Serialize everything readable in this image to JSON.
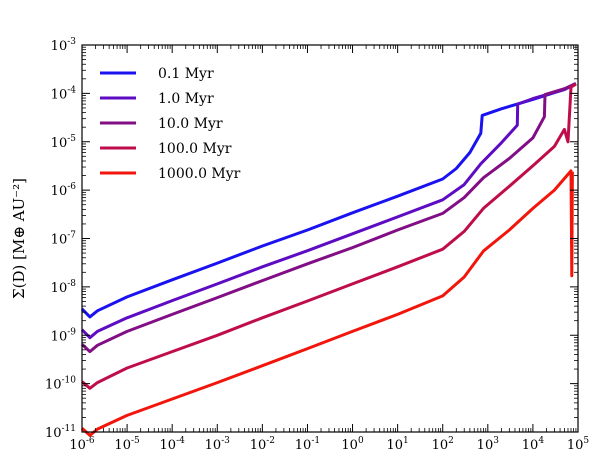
{
  "chart_data": {
    "type": "line",
    "title": "",
    "xlabel": "",
    "ylabel": "Σ(D) [M⊕ AU⁻²]",
    "x_scale": "log",
    "y_scale": "log",
    "xlim": [
      1e-06,
      100000.0
    ],
    "ylim": [
      1e-11,
      0.001
    ],
    "grid": false,
    "legend_position": "top-left",
    "x_tick_labels": [
      "10-6",
      "10-5",
      "10-4",
      "10-3",
      "10-2",
      "10-1",
      "100",
      "101",
      "102",
      "103",
      "104",
      "105"
    ],
    "y_tick_labels": [
      "10-11",
      "10-10",
      "10-9",
      "10-8",
      "10-7",
      "10-6",
      "10-5",
      "10-4",
      "10-3"
    ],
    "series": [
      {
        "name": "0.1 Myr",
        "color": "#1a12f0",
        "points": [
          [
            1e-06,
            3.5e-09
          ],
          [
            1.5e-06,
            2.4e-09
          ],
          [
            2.2e-06,
            3.2e-09
          ],
          [
            1e-05,
            6.2e-09
          ],
          [
            0.0001,
            1.4e-08
          ],
          [
            0.001,
            3.1e-08
          ],
          [
            0.01,
            7e-08
          ],
          [
            0.1,
            1.5e-07
          ],
          [
            1,
            3.4e-07
          ],
          [
            10,
            7.5e-07
          ],
          [
            100,
            1.7e-06
          ],
          [
            200,
            2.8e-06
          ],
          [
            400,
            6e-06
          ],
          [
            700,
            1.5e-05
          ],
          [
            750,
            3.5e-05
          ],
          [
            2000,
            4.8e-05
          ],
          [
            10000.0,
            7.5e-05
          ],
          [
            50000.0,
            0.00012
          ],
          [
            90000.0,
            0.00016
          ]
        ]
      },
      {
        "name": "1.0 Myr",
        "color": "#5e0cc4",
        "points": [
          [
            1e-06,
            1.3e-09
          ],
          [
            1.5e-06,
            8.9e-10
          ],
          [
            2.2e-06,
            1.2e-09
          ],
          [
            1e-05,
            2.3e-09
          ],
          [
            0.0001,
            5.2e-09
          ],
          [
            0.001,
            1.15e-08
          ],
          [
            0.01,
            2.6e-08
          ],
          [
            0.1,
            5.6e-08
          ],
          [
            1,
            1.25e-07
          ],
          [
            10,
            2.8e-07
          ],
          [
            100,
            6.3e-07
          ],
          [
            300,
            1.3e-06
          ],
          [
            700,
            3.5e-06
          ],
          [
            2000,
            9.5e-06
          ],
          [
            4500,
            2.2e-05
          ],
          [
            4600,
            6e-05
          ],
          [
            10000.0,
            7.8e-05
          ],
          [
            50000.0,
            0.00012
          ],
          [
            90000.0,
            0.00016
          ]
        ]
      },
      {
        "name": "10.0 Myr",
        "color": "#820e86",
        "points": [
          [
            1e-06,
            6.5e-10
          ],
          [
            1.5e-06,
            4.6e-10
          ],
          [
            2.2e-06,
            6.2e-10
          ],
          [
            1e-05,
            1.2e-09
          ],
          [
            0.0001,
            2.7e-09
          ],
          [
            0.001,
            6e-09
          ],
          [
            0.01,
            1.35e-08
          ],
          [
            0.1,
            3e-08
          ],
          [
            1,
            6.5e-08
          ],
          [
            10,
            1.5e-07
          ],
          [
            100,
            3.3e-07
          ],
          [
            300,
            7e-07
          ],
          [
            800,
            1.8e-06
          ],
          [
            3000,
            4.5e-06
          ],
          [
            10000.0,
            1.2e-05
          ],
          [
            18000.0,
            3.3e-05
          ],
          [
            18500.0,
            9.5e-05
          ],
          [
            50000.0,
            0.000125
          ],
          [
            90000.0,
            0.00016
          ]
        ]
      },
      {
        "name": "100.0 Myr",
        "color": "#bf0d4c",
        "points": [
          [
            1e-06,
            1.1e-10
          ],
          [
            1.5e-06,
            8e-11
          ],
          [
            2.2e-06,
            1.05e-10
          ],
          [
            1e-05,
            2.1e-10
          ],
          [
            0.0001,
            4.6e-10
          ],
          [
            0.001,
            1e-09
          ],
          [
            0.01,
            2.3e-09
          ],
          [
            0.1,
            5.1e-09
          ],
          [
            1,
            1.15e-08
          ],
          [
            10,
            2.6e-08
          ],
          [
            100,
            6e-08
          ],
          [
            300,
            1.4e-07
          ],
          [
            800,
            4.2e-07
          ],
          [
            3000,
            1.2e-06
          ],
          [
            10000.0,
            3.2e-06
          ],
          [
            30000.0,
            8e-06
          ],
          [
            50000.0,
            1.8e-05
          ],
          [
            60000.0,
            1e-05
          ],
          [
            70000.0,
            0.000135
          ],
          [
            90000.0,
            0.000155
          ]
        ]
      },
      {
        "name": "1000.0 Myr",
        "color": "#f2150c",
        "points": [
          [
            1e-06,
            1.2e-11
          ],
          [
            1.5e-06,
            8.5e-12
          ],
          [
            2.2e-06,
            1.15e-11
          ],
          [
            1e-05,
            2.2e-11
          ],
          [
            0.0001,
            4.8e-11
          ],
          [
            0.001,
            1.05e-10
          ],
          [
            0.01,
            2.35e-10
          ],
          [
            0.1,
            5.3e-10
          ],
          [
            1,
            1.2e-09
          ],
          [
            10,
            2.7e-09
          ],
          [
            100,
            6.5e-09
          ],
          [
            300,
            1.6e-08
          ],
          [
            800,
            5.5e-08
          ],
          [
            3000,
            1.5e-07
          ],
          [
            10000.0,
            4.2e-07
          ],
          [
            30000.0,
            1e-06
          ],
          [
            70000.0,
            2.5e-06
          ],
          [
            73000.0,
            1.7e-08
          ],
          [
            75000.0,
            2.4e-06
          ]
        ]
      }
    ]
  }
}
